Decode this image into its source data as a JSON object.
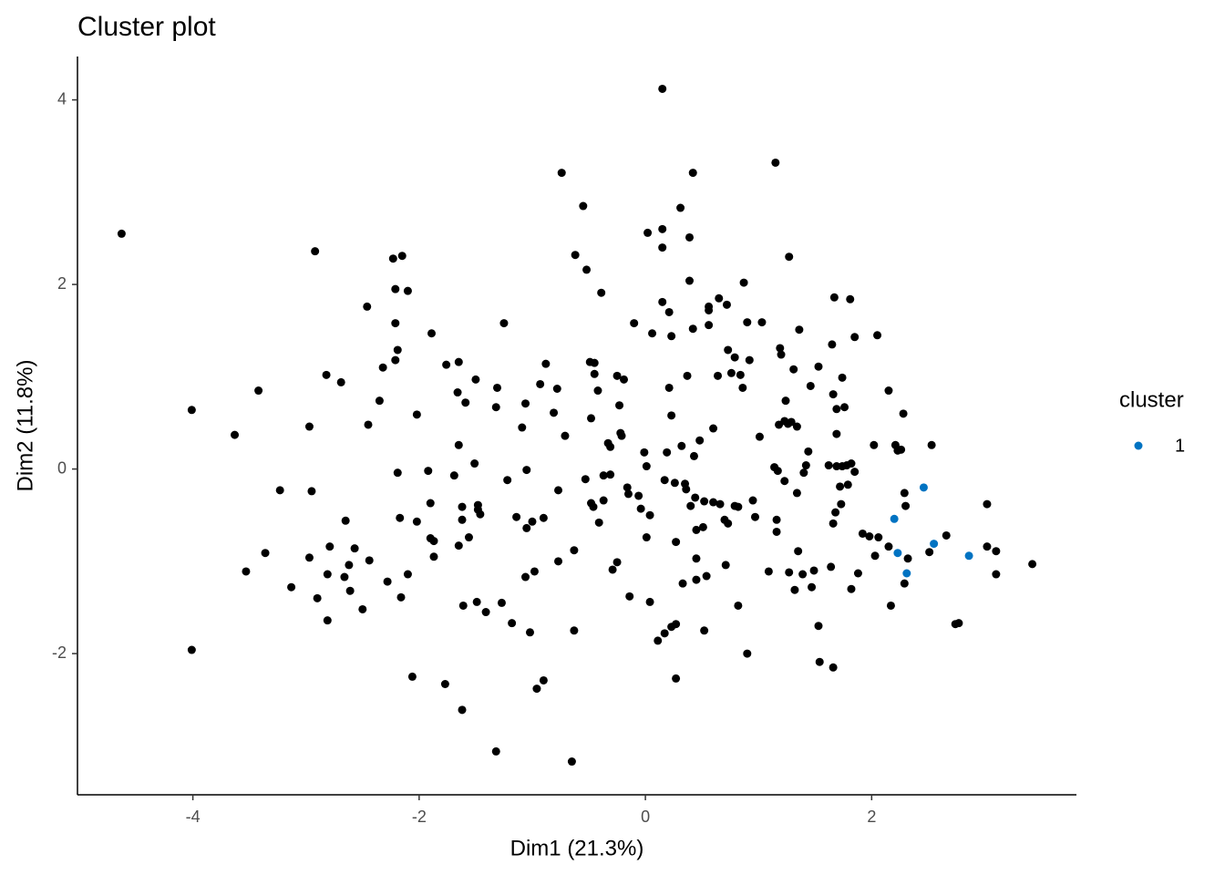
{
  "chart_data": {
    "type": "scatter",
    "title": "Cluster plot",
    "x_label": "Dim1 (21.3%)",
    "y_label": "Dim2 (11.8%)",
    "legend_title": "cluster",
    "xlim": [
      -5.02,
      3.81
    ],
    "ylim": [
      -3.53,
      4.47
    ],
    "xticks": [
      -4,
      -2,
      0,
      2
    ],
    "yticks": [
      -2,
      0,
      2,
      4
    ],
    "grid": false,
    "legend": "right",
    "series": [
      {
        "color": "#000000",
        "x": [
          -4.63,
          -4.01,
          -4.01,
          -3.63,
          -3.42,
          -3.53,
          -3.36,
          -3.23,
          -3.13,
          -2.92,
          -2.97,
          -2.95,
          -2.97,
          -2.9,
          -2.82,
          -2.79,
          -2.81,
          -2.81,
          -2.69,
          -2.65,
          -2.66,
          -2.62,
          -2.61,
          -2.57,
          -2.5,
          -2.46,
          -2.45,
          -2.44,
          -2.35,
          -2.32,
          -2.28,
          -2.23,
          -2.15,
          -2.21,
          -2.21,
          -2.19,
          -2.21,
          -2.19,
          -2.17,
          -2.16,
          -2.1,
          -2.1,
          -2.06,
          -2.02,
          -2.02,
          -1.92,
          -1.9,
          -1.89,
          -1.9,
          -1.87,
          -1.87,
          -1.77,
          -1.76,
          -1.66,
          -1.65,
          -1.65,
          -1.69,
          -1.62,
          -1.62,
          -1.65,
          -1.61,
          -1.62,
          -1.59,
          -1.56,
          -1.51,
          -1.5,
          -1.48,
          -1.48,
          -1.49,
          -1.46,
          -1.41,
          -1.32,
          -1.31,
          -1.32,
          -1.25,
          -1.22,
          -1.27,
          -1.18,
          -1.14,
          -1.09,
          -1.06,
          -1.05,
          -1.05,
          -1.06,
          -1.02,
          -1.0,
          -0.98,
          -0.96,
          -0.93,
          -0.9,
          -0.9,
          -0.88,
          -0.81,
          -0.78,
          -0.77,
          -0.77,
          -0.74,
          -0.71,
          -0.65,
          -0.63,
          -0.63,
          -0.62,
          -0.55,
          -0.53,
          -0.52,
          -0.49,
          -0.48,
          -0.48,
          -0.46,
          -0.45,
          -0.45,
          -0.42,
          -0.41,
          -0.39,
          -0.37,
          -0.33,
          -0.37,
          -0.31,
          -0.31,
          -0.29,
          -0.25,
          -0.25,
          -0.22,
          -0.23,
          -0.21,
          -0.19,
          -0.16,
          -0.15,
          -0.14,
          -0.1,
          -0.06,
          -0.04,
          -0.01,
          0.01,
          0.01,
          0.02,
          0.04,
          0.04,
          0.06,
          0.11,
          0.15,
          0.15,
          0.15,
          0.15,
          0.17,
          0.17,
          0.21,
          0.19,
          0.21,
          0.23,
          0.23,
          0.23,
          0.26,
          0.27,
          0.27,
          0.27,
          0.31,
          0.32,
          0.33,
          0.35,
          0.37,
          0.36,
          0.39,
          0.39,
          0.4,
          0.42,
          0.42,
          0.43,
          0.44,
          0.45,
          0.45,
          0.45,
          0.48,
          0.51,
          0.52,
          0.54,
          0.56,
          0.56,
          0.56,
          0.52,
          0.6,
          0.6,
          0.64,
          0.65,
          0.66,
          0.7,
          0.71,
          0.72,
          0.73,
          0.73,
          0.76,
          0.79,
          0.79,
          0.82,
          0.82,
          0.84,
          0.86,
          0.87,
          0.9,
          0.9,
          0.92,
          0.95,
          0.97,
          1.01,
          1.03,
          1.09,
          1.14,
          1.15,
          1.16,
          1.16,
          1.17,
          1.18,
          1.19,
          1.2,
          1.23,
          1.23,
          1.24,
          1.26,
          1.27,
          1.29,
          1.27,
          1.31,
          1.32,
          1.34,
          1.34,
          1.35,
          1.36,
          1.39,
          1.4,
          1.42,
          1.44,
          1.46,
          1.47,
          1.49,
          1.53,
          1.53,
          1.54,
          1.62,
          1.64,
          1.65,
          1.66,
          1.66,
          1.66,
          1.67,
          1.68,
          1.69,
          1.69,
          1.69,
          1.72,
          1.73,
          1.74,
          1.74,
          1.76,
          1.78,
          1.79,
          1.81,
          1.82,
          1.82,
          1.85,
          1.85,
          1.88,
          1.92,
          1.98,
          2.02,
          2.03,
          2.05,
          2.06,
          2.15,
          2.15,
          2.17,
          2.21,
          2.23,
          2.26,
          2.28,
          2.29,
          2.3,
          2.32,
          2.29,
          2.51,
          2.53,
          2.66,
          2.74,
          2.77,
          3.02,
          3.02,
          3.1,
          3.1,
          3.42
        ],
        "values": [
          2.55,
          0.64,
          -1.96,
          0.37,
          0.85,
          -1.11,
          -0.91,
          -0.23,
          -1.28,
          2.36,
          0.46,
          -0.24,
          -0.96,
          -1.4,
          1.02,
          -0.84,
          -1.14,
          -1.64,
          0.94,
          -0.56,
          -1.17,
          -1.04,
          -1.32,
          -0.86,
          -1.52,
          1.76,
          0.48,
          -0.99,
          0.74,
          1.1,
          -1.22,
          2.28,
          2.31,
          1.95,
          1.58,
          1.29,
          1.18,
          -0.04,
          -0.53,
          -1.39,
          1.93,
          -1.14,
          -2.25,
          0.59,
          -0.57,
          -0.02,
          -0.37,
          1.47,
          -0.75,
          -0.78,
          -0.95,
          -2.33,
          1.13,
          0.83,
          1.16,
          0.26,
          -0.07,
          -0.41,
          -0.55,
          -0.83,
          -1.48,
          -2.61,
          0.72,
          -0.74,
          0.06,
          0.97,
          -0.39,
          -0.44,
          -1.44,
          -0.49,
          -1.55,
          0.67,
          0.88,
          -3.06,
          1.58,
          -0.12,
          -1.45,
          -1.67,
          -0.52,
          0.45,
          0.71,
          -0.01,
          -0.64,
          -1.17,
          -1.77,
          -0.57,
          -1.11,
          -2.38,
          0.92,
          -2.29,
          -0.53,
          1.14,
          0.61,
          0.87,
          -0.23,
          -1.0,
          3.21,
          0.36,
          -3.17,
          -0.88,
          -1.75,
          2.32,
          2.85,
          -0.11,
          2.16,
          1.16,
          0.55,
          -0.37,
          -0.41,
          1.15,
          1.03,
          0.85,
          -0.58,
          1.91,
          -0.34,
          0.28,
          -0.07,
          0.24,
          -0.06,
          -1.09,
          1.01,
          -1.01,
          0.39,
          0.69,
          0.36,
          0.97,
          -0.2,
          -0.27,
          -1.38,
          1.58,
          -0.29,
          -0.43,
          0.18,
          0.03,
          -0.74,
          2.56,
          -0.5,
          -1.44,
          1.47,
          -1.86,
          4.12,
          2.6,
          2.4,
          1.81,
          -0.12,
          -1.78,
          1.7,
          0.18,
          0.88,
          1.44,
          0.58,
          -1.71,
          -0.15,
          -0.79,
          -1.68,
          -2.27,
          2.83,
          0.25,
          -1.24,
          -0.16,
          1.01,
          -0.22,
          2.51,
          2.04,
          -0.4,
          3.21,
          1.52,
          0.14,
          -0.31,
          -0.66,
          -0.97,
          -1.2,
          0.31,
          -0.63,
          -0.35,
          -1.16,
          1.72,
          1.76,
          1.56,
          -1.75,
          0.44,
          -0.36,
          1.01,
          1.85,
          -0.38,
          -0.55,
          -1.04,
          1.78,
          -0.59,
          1.29,
          1.04,
          1.21,
          -0.4,
          -0.41,
          -1.48,
          1.02,
          0.88,
          2.02,
          -2.0,
          1.59,
          1.18,
          -0.34,
          -0.52,
          0.35,
          1.59,
          -1.11,
          0.02,
          3.32,
          -0.55,
          -0.68,
          -0.02,
          0.48,
          1.31,
          1.24,
          0.52,
          -0.13,
          0.74,
          0.49,
          2.3,
          0.51,
          -1.12,
          1.08,
          -1.31,
          0.46,
          -0.26,
          -0.89,
          1.51,
          -1.14,
          -0.04,
          0.04,
          0.19,
          0.9,
          -1.28,
          -1.1,
          1.11,
          -1.7,
          -2.09,
          0.04,
          -1.06,
          1.35,
          0.81,
          -0.59,
          -2.15,
          1.86,
          -0.47,
          0.65,
          0.03,
          0.38,
          -0.19,
          -0.38,
          0.03,
          0.99,
          0.67,
          0.04,
          -0.17,
          1.84,
          -1.3,
          0.06,
          1.43,
          -0.03,
          -1.13,
          -0.7,
          -0.73,
          0.26,
          -0.94,
          1.45,
          -0.74,
          0.85,
          -0.84,
          -1.48,
          0.26,
          0.2,
          0.21,
          0.6,
          -0.26,
          -0.4,
          -0.97,
          -1.24,
          -0.9,
          0.26,
          -0.72,
          -1.68,
          -1.67,
          -0.84,
          -0.38,
          -0.89,
          -1.14,
          -1.03
        ]
      },
      {
        "name": "1",
        "color": "#0073c2",
        "x": [
          2.46,
          2.2,
          2.23,
          2.31,
          2.55,
          2.86
        ],
        "values": [
          -0.2,
          -0.54,
          -0.91,
          -1.13,
          -0.81,
          -0.94
        ]
      }
    ]
  }
}
